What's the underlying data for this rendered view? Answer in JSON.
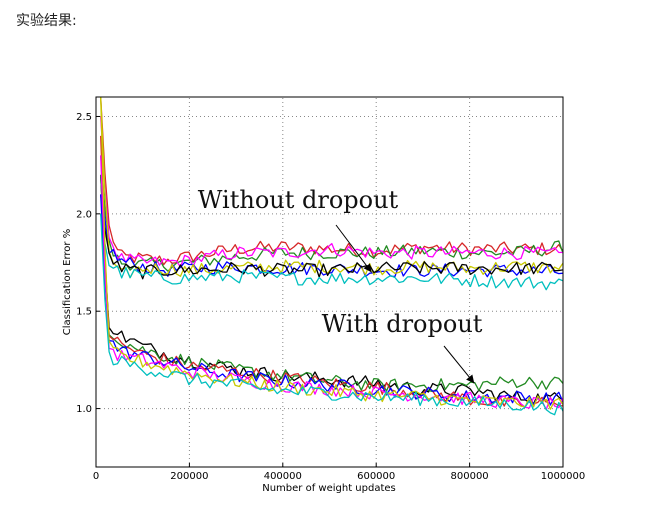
{
  "page": {
    "caption": "实验结果:"
  },
  "chart_data": {
    "type": "line",
    "title": "",
    "xlabel": "Number of weight updates",
    "ylabel": "Classification Error %",
    "xlim": [
      0,
      1000000
    ],
    "ylim": [
      0.7,
      2.6
    ],
    "xticks": [
      0,
      200000,
      400000,
      600000,
      800000,
      1000000
    ],
    "yticks": [
      1.0,
      1.5,
      2.0,
      2.5
    ],
    "grid": "dotted",
    "annotations": [
      {
        "text": "Without dropout",
        "arrow_to": [
          590000,
          1.7
        ]
      },
      {
        "text": "With dropout",
        "arrow_to": [
          810000,
          1.13
        ]
      }
    ],
    "colors": [
      "#d62728",
      "#0000ff",
      "#228b22",
      "#c8c800",
      "#ff00ff",
      "#00bfbf",
      "#000000"
    ],
    "series_groups": [
      {
        "group": "Without dropout",
        "x": [
          10000,
          25000,
          50000,
          100000,
          150000,
          200000,
          300000,
          400000,
          500000,
          600000,
          700000,
          800000,
          900000,
          1000000
        ],
        "series": [
          {
            "color": "#d62728",
            "values": [
              2.6,
              1.95,
              1.78,
              1.77,
              1.76,
              1.78,
              1.82,
              1.83,
              1.82,
              1.81,
              1.83,
              1.82,
              1.82,
              1.82
            ]
          },
          {
            "color": "#228b22",
            "values": [
              2.3,
              1.85,
              1.75,
              1.74,
              1.74,
              1.75,
              1.78,
              1.8,
              1.8,
              1.8,
              1.81,
              1.8,
              1.8,
              1.83
            ]
          },
          {
            "color": "#ff00ff",
            "values": [
              2.5,
              1.9,
              1.77,
              1.75,
              1.75,
              1.76,
              1.8,
              1.8,
              1.82,
              1.8,
              1.8,
              1.8,
              1.8,
              1.79
            ]
          },
          {
            "color": "#0000ff",
            "values": [
              2.2,
              1.83,
              1.76,
              1.73,
              1.71,
              1.72,
              1.73,
              1.72,
              1.72,
              1.71,
              1.71,
              1.71,
              1.71,
              1.7
            ]
          },
          {
            "color": "#c8c800",
            "values": [
              2.6,
              1.8,
              1.68,
              1.72,
              1.72,
              1.71,
              1.72,
              1.73,
              1.73,
              1.72,
              1.73,
              1.72,
              1.73,
              1.72
            ]
          },
          {
            "color": "#000000",
            "values": [
              2.1,
              1.8,
              1.72,
              1.7,
              1.71,
              1.71,
              1.72,
              1.71,
              1.71,
              1.72,
              1.72,
              1.72,
              1.72,
              1.72
            ]
          },
          {
            "color": "#00bfbf",
            "values": [
              2.0,
              1.75,
              1.7,
              1.68,
              1.67,
              1.67,
              1.68,
              1.67,
              1.67,
              1.67,
              1.67,
              1.66,
              1.65,
              1.64
            ]
          }
        ]
      },
      {
        "group": "With dropout",
        "x": [
          10000,
          25000,
          50000,
          100000,
          150000,
          200000,
          300000,
          400000,
          500000,
          600000,
          700000,
          800000,
          900000,
          1000000
        ],
        "series": [
          {
            "color": "#000000",
            "values": [
              2.2,
              1.45,
              1.38,
              1.32,
              1.28,
              1.25,
              1.2,
              1.17,
              1.15,
              1.13,
              1.1,
              1.09,
              1.06,
              1.05
            ]
          },
          {
            "color": "#228b22",
            "values": [
              2.2,
              1.42,
              1.35,
              1.3,
              1.27,
              1.24,
              1.2,
              1.17,
              1.14,
              1.12,
              1.12,
              1.12,
              1.14,
              1.13
            ]
          },
          {
            "color": "#d62728",
            "values": [
              2.4,
              1.4,
              1.33,
              1.28,
              1.25,
              1.22,
              1.19,
              1.16,
              1.13,
              1.11,
              1.08,
              1.05,
              1.02,
              1.04
            ]
          },
          {
            "color": "#0000ff",
            "values": [
              2.1,
              1.36,
              1.3,
              1.27,
              1.24,
              1.21,
              1.17,
              1.14,
              1.12,
              1.1,
              1.08,
              1.06,
              1.06,
              1.05
            ]
          },
          {
            "color": "#ff00ff",
            "values": [
              2.3,
              1.32,
              1.27,
              1.25,
              1.22,
              1.19,
              1.15,
              1.12,
              1.1,
              1.08,
              1.07,
              1.05,
              1.03,
              1.02
            ]
          },
          {
            "color": "#c8c800",
            "values": [
              2.6,
              1.32,
              1.27,
              1.24,
              1.21,
              1.18,
              1.14,
              1.11,
              1.09,
              1.07,
              1.06,
              1.04,
              1.03,
              1.03
            ]
          },
          {
            "color": "#00bfbf",
            "values": [
              2.0,
              1.27,
              1.24,
              1.21,
              1.18,
              1.15,
              1.12,
              1.09,
              1.08,
              1.06,
              1.05,
              1.03,
              1.02,
              1.0
            ]
          }
        ]
      }
    ]
  }
}
